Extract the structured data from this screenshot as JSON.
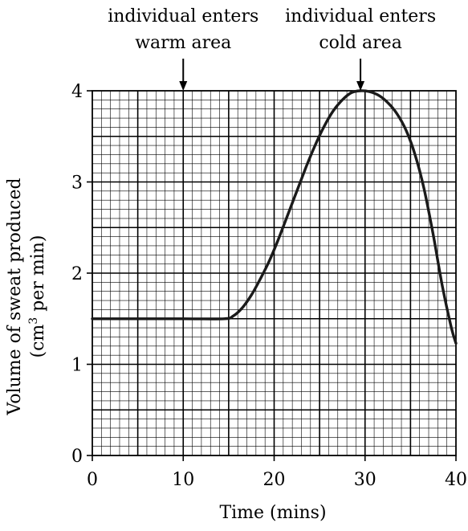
{
  "chart_data": {
    "type": "line",
    "title": "",
    "xlabel": "Time (mins)",
    "ylabel_line1": "Volume of sweat produced",
    "ylabel_line2_prefix": "(cm",
    "ylabel_line2_sup": "3",
    "ylabel_line2_suffix": " per min)",
    "xlim": [
      0,
      40
    ],
    "ylim": [
      0,
      4
    ],
    "x_ticks": [
      0,
      10,
      20,
      30,
      40
    ],
    "y_ticks": [
      0,
      1,
      2,
      3,
      4
    ],
    "x_tick_labels": [
      "0",
      "10",
      "20",
      "30",
      "40"
    ],
    "y_tick_labels": [
      "0",
      "1",
      "2",
      "3",
      "4"
    ],
    "grid": true,
    "grid_minor_x_step": 1,
    "grid_minor_y_step": 0.1,
    "series": [
      {
        "x": [
          0,
          5,
          10,
          14.5,
          15.5,
          16.5,
          17.5,
          18.5,
          19.5,
          20.5,
          21.5,
          22.5,
          23.5,
          24.5,
          25.5,
          26.5,
          27.5,
          28.5,
          29.5,
          30.5,
          31.5,
          32.5,
          33.5,
          34.5,
          35.5,
          36.5,
          37.5,
          38.5,
          39.5,
          40
        ],
        "y": [
          1.5,
          1.5,
          1.5,
          1.5,
          1.53,
          1.62,
          1.76,
          1.94,
          2.14,
          2.38,
          2.64,
          2.9,
          3.16,
          3.4,
          3.61,
          3.78,
          3.9,
          3.98,
          4.0,
          3.99,
          3.95,
          3.87,
          3.75,
          3.57,
          3.3,
          2.92,
          2.42,
          1.86,
          1.4,
          1.23
        ]
      }
    ],
    "annotations": [
      {
        "x": 10,
        "line1": "individual enters",
        "line2": "warm area"
      },
      {
        "x": 29.5,
        "line1": "individual enters",
        "line2": "cold area"
      }
    ]
  }
}
